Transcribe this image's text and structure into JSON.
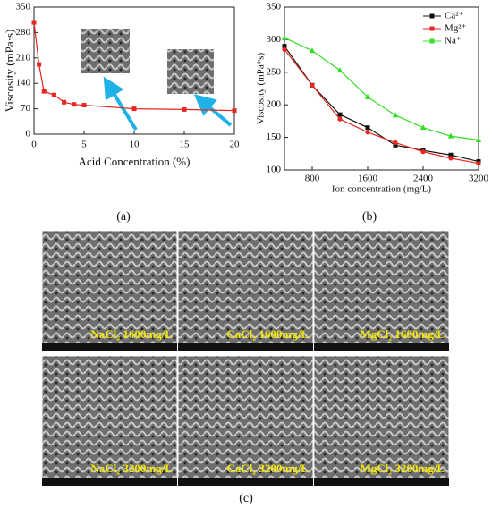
{
  "chart_data": [
    {
      "type": "line",
      "x_label": "Acid Concentration (%)",
      "y_label": "Viscosity (mPa·s)",
      "x": [
        0,
        0.5,
        1,
        2,
        3,
        4,
        5,
        10,
        15,
        20
      ],
      "series": [
        {
          "color": "#e8261f",
          "marker": "square",
          "values": [
            308,
            192,
            118,
            108,
            88,
            82,
            80,
            70,
            68,
            65
          ]
        }
      ],
      "xlim": [
        0,
        20
      ],
      "xticks": [
        0,
        5,
        10,
        15,
        20
      ],
      "ylim": [
        0,
        350
      ],
      "yticks": [
        0,
        70,
        140,
        210,
        280,
        350
      ]
    },
    {
      "type": "line",
      "x_label": "Ion concentration (mg/L)",
      "y_label": "Viscosity (mPa*s)",
      "x": [
        400,
        800,
        1200,
        1600,
        2000,
        2400,
        2800,
        3200
      ],
      "series": [
        {
          "name": "Ca²⁺",
          "color": "#111111",
          "marker": "square",
          "values": [
            290,
            230,
            185,
            165,
            138,
            130,
            123,
            113
          ]
        },
        {
          "name": "Mg²⁺",
          "color": "#e8261f",
          "marker": "circle",
          "values": [
            285,
            230,
            178,
            158,
            142,
            128,
            118,
            110
          ]
        },
        {
          "name": "Na⁺",
          "color": "#33dd22",
          "marker": "triangle",
          "values": [
            303,
            283,
            253,
            212,
            184,
            165,
            152,
            146
          ]
        }
      ],
      "xlim": [
        400,
        3200
      ],
      "xticks": [
        800,
        1600,
        2400,
        3200
      ],
      "ylim": [
        100,
        350
      ],
      "yticks": [
        100,
        150,
        200,
        250,
        300,
        350
      ],
      "legend": "top-right"
    }
  ],
  "panel_labels": [
    "(a)",
    "(b)",
    "(c)"
  ],
  "sem_images": [
    "NaCl₂ 1600mg/L",
    "CaCl₂ 1600mg/L",
    "MgCl₂ 1600mg/L",
    "NaCl₂ 3200mg/L",
    "CaCl₂ 3200mg/L",
    "MgCl₂ 3200mg/L"
  ]
}
